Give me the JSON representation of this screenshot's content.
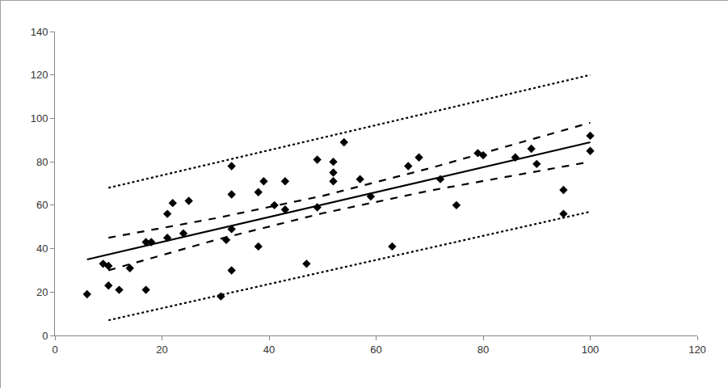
{
  "chart_data": {
    "type": "scatter",
    "xlim": [
      0,
      120
    ],
    "xticks": [
      0,
      20,
      40,
      60,
      80,
      100,
      120
    ],
    "ylim": [
      0,
      140
    ],
    "yticks": [
      0,
      20,
      40,
      60,
      80,
      100,
      120,
      140
    ],
    "grid": false,
    "series": [
      {
        "type": "scatter",
        "marker": "diamond",
        "color": "#000000",
        "x": [
          6,
          9,
          10,
          10,
          12,
          14,
          17,
          18,
          17,
          21,
          21,
          22,
          24,
          25,
          31,
          32,
          33,
          33,
          33,
          33,
          38,
          38,
          39,
          41,
          43,
          43,
          47,
          49,
          49,
          52,
          52,
          52,
          54,
          57,
          59,
          63,
          66,
          68,
          72,
          75,
          79,
          80,
          86,
          89,
          90,
          95,
          95,
          100,
          100
        ],
        "values": [
          19,
          33,
          32,
          23,
          21,
          31,
          43,
          43,
          21,
          56,
          45,
          61,
          47,
          62,
          18,
          44,
          78,
          65,
          49,
          30,
          41,
          66,
          71,
          60,
          71,
          58,
          33,
          81,
          59,
          80,
          75,
          71,
          89,
          72,
          64,
          41,
          78,
          82,
          72,
          60,
          84,
          83,
          82,
          86,
          79,
          67,
          56,
          92,
          85
        ]
      },
      {
        "type": "line",
        "line_style": "solid",
        "color": "#000000",
        "x": [
          6,
          100
        ],
        "values": [
          35,
          89
        ]
      },
      {
        "type": "line",
        "line_style": "dash",
        "color": "#000000",
        "x": [
          10,
          30,
          50,
          70,
          100
        ],
        "values": [
          45,
          54,
          64.3,
          77,
          98
        ]
      },
      {
        "type": "line",
        "line_style": "dash",
        "color": "#000000",
        "x": [
          10,
          30,
          50,
          70,
          100
        ],
        "values": [
          30,
          44,
          56.3,
          66.7,
          80
        ]
      },
      {
        "type": "line",
        "line_style": "dot",
        "color": "#000000",
        "x": [
          10,
          55,
          100
        ],
        "values": [
          68,
          94,
          120
        ]
      },
      {
        "type": "line",
        "line_style": "dot",
        "color": "#000000",
        "x": [
          10,
          55,
          100
        ],
        "values": [
          7,
          32,
          57
        ]
      }
    ]
  }
}
